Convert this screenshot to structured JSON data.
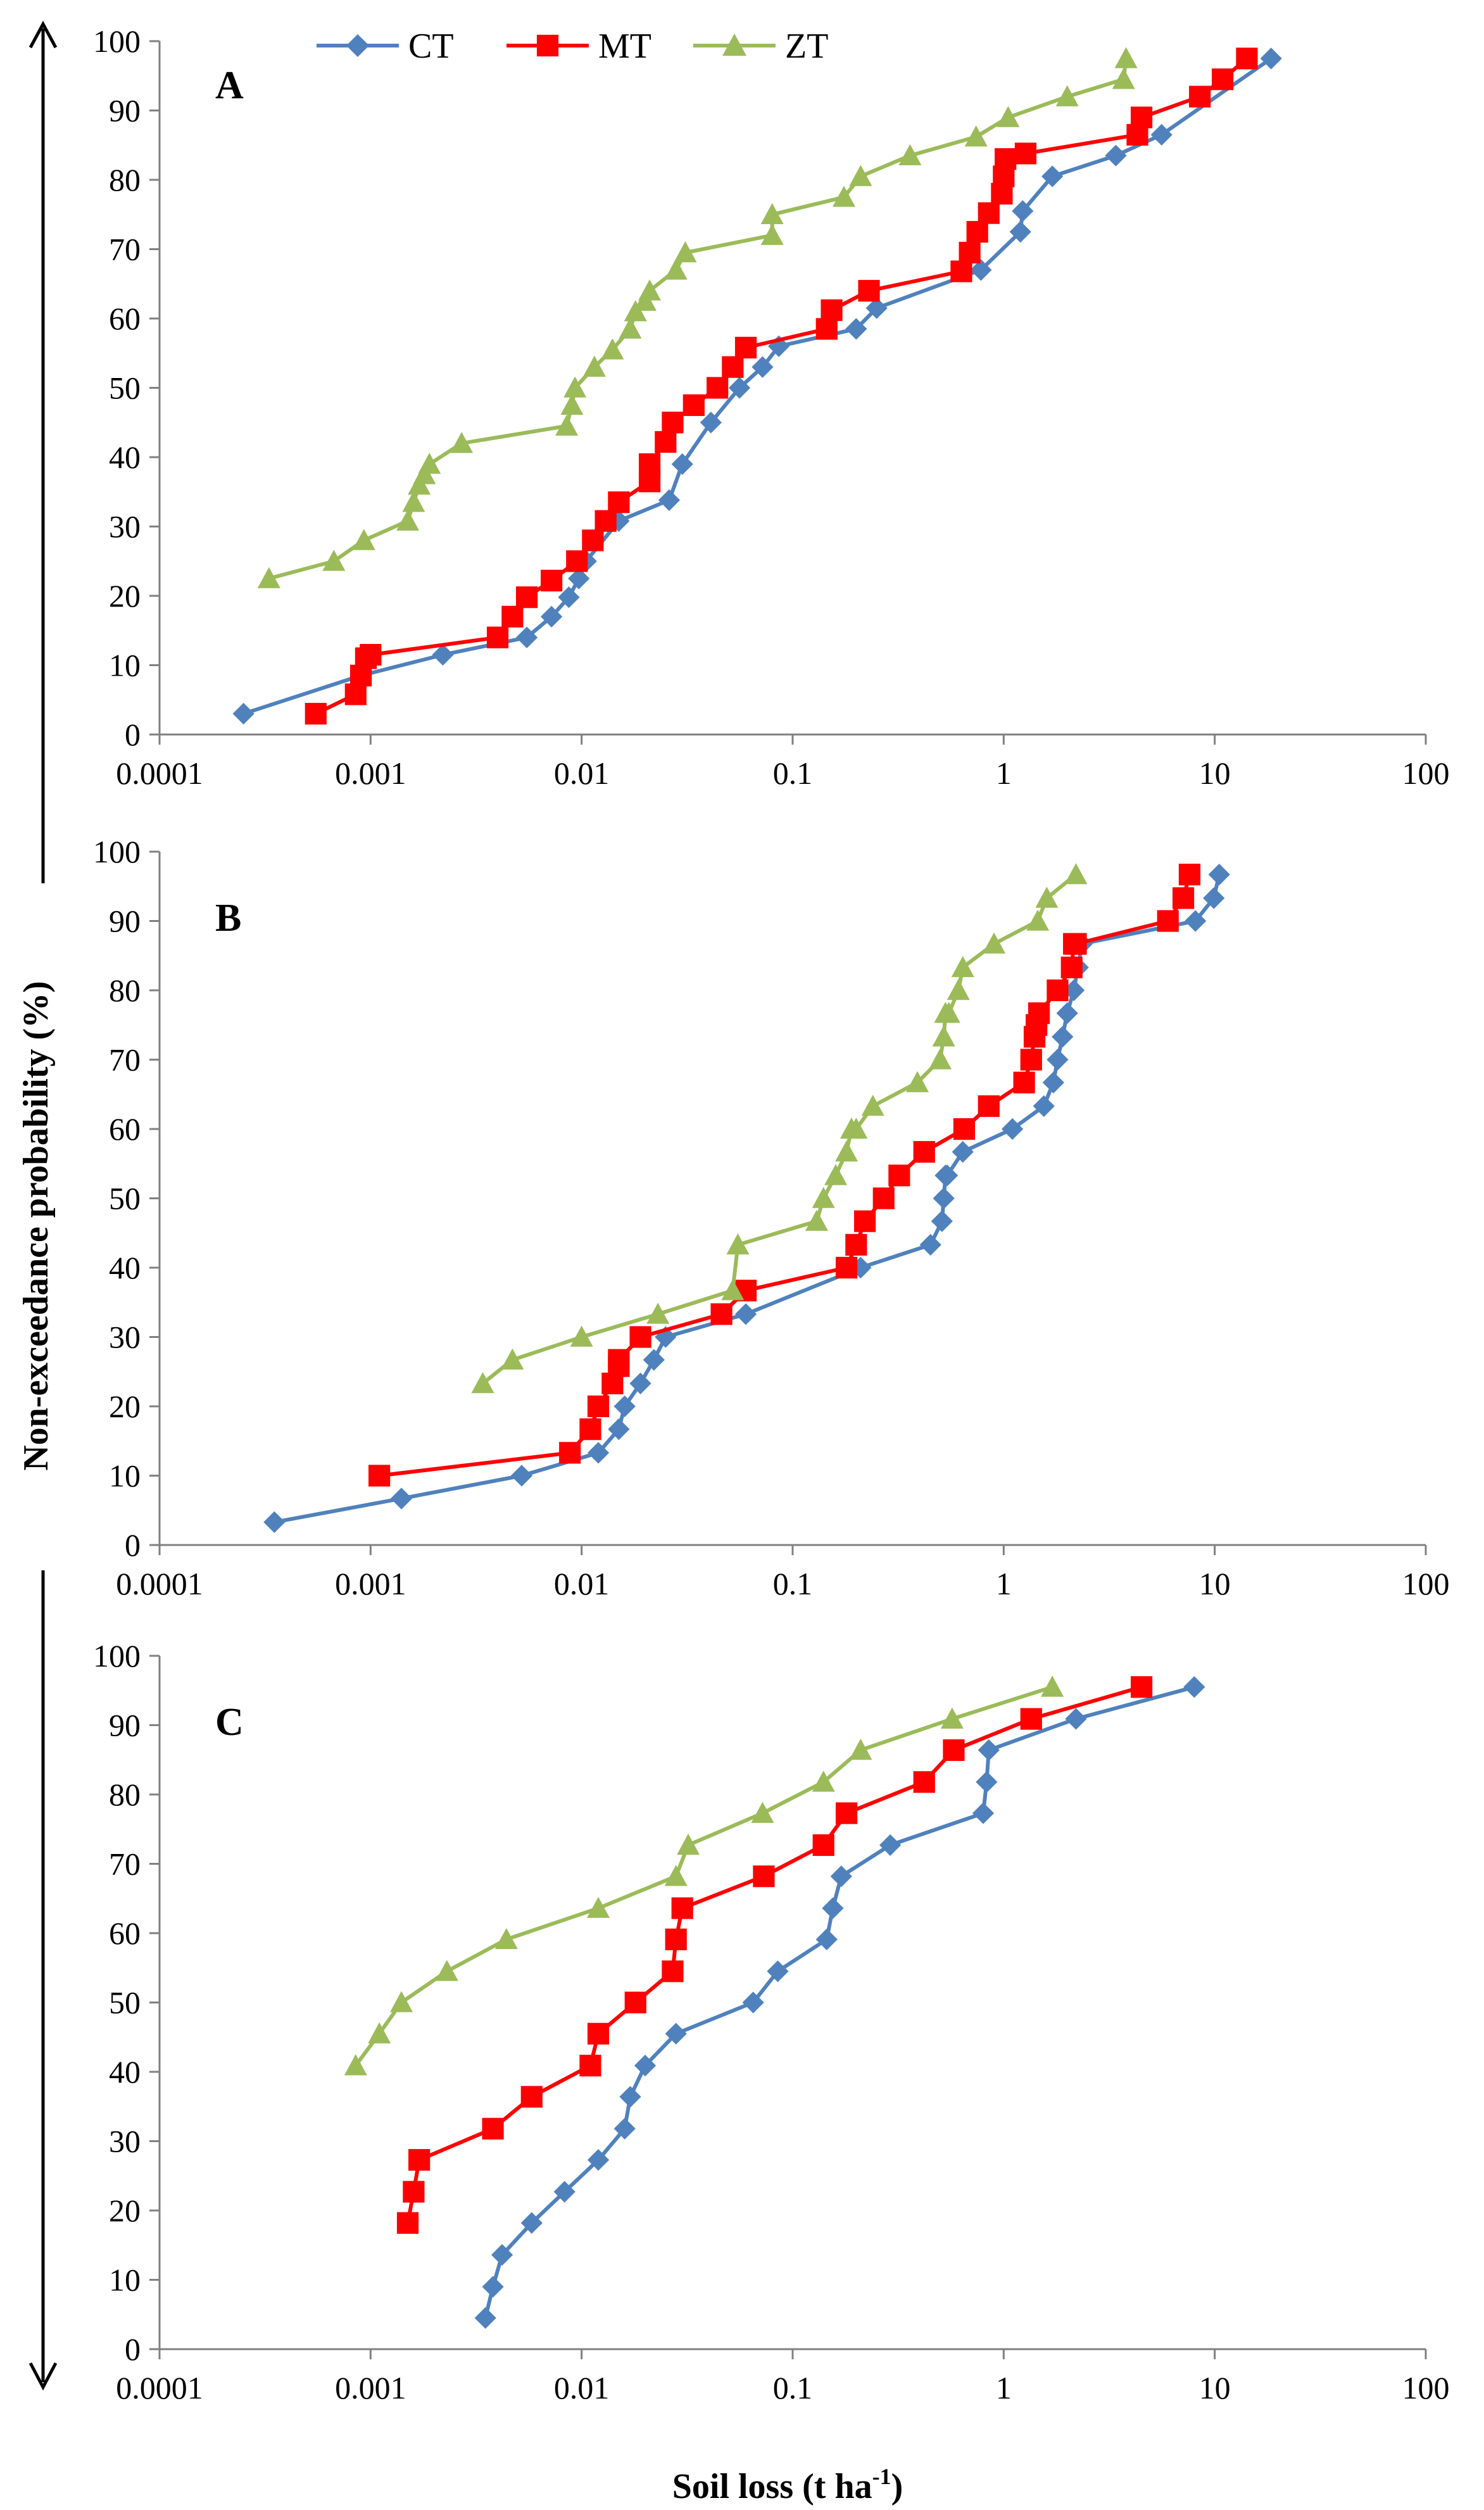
{
  "figure": {
    "ylabel": "Non-exceedance probability (%)",
    "xlabel_main": "Soil loss (t ha",
    "xlabel_sup": "-1",
    "xlabel_close": ")",
    "legend": [
      {
        "name": "CT",
        "color": "#4F81BD",
        "marker": "diamond"
      },
      {
        "name": "MT",
        "color": "#FF0000",
        "marker": "square"
      },
      {
        "name": "ZT",
        "color": "#9BBB59",
        "marker": "triangle"
      }
    ]
  },
  "chart_data": [
    {
      "type": "line",
      "panel": "A",
      "xscale": "log",
      "xlim": [
        0.0001,
        100
      ],
      "ylim": [
        0,
        100
      ],
      "xticks": [
        "0.0001",
        "0.001",
        "0.01",
        "0.1",
        "1",
        "10",
        "100"
      ],
      "yticks": [
        "0",
        "10",
        "20",
        "30",
        "40",
        "50",
        "60",
        "70",
        "80",
        "90",
        "100"
      ],
      "series": [
        {
          "name": "CT",
          "x": [
            0.00025,
            0.0009,
            0.0022,
            0.0055,
            0.0072,
            0.0087,
            0.0097,
            0.0105,
            0.015,
            0.026,
            0.03,
            0.041,
            0.056,
            0.072,
            0.086,
            0.2,
            0.25,
            0.78,
            1.2,
            1.23,
            1.7,
            3.4,
            5.6,
            18.5
          ],
          "y": [
            3,
            8.5,
            11.5,
            14,
            17,
            19.8,
            22.5,
            25,
            30.8,
            33.8,
            39,
            45,
            50,
            53,
            56,
            58.5,
            61.5,
            67,
            72.5,
            75.5,
            80.5,
            83.5,
            86.5,
            97.5
          ]
        },
        {
          "name": "MT",
          "x": [
            0.00055,
            0.00085,
            0.0009,
            0.00095,
            0.001,
            0.004,
            0.0047,
            0.0055,
            0.0072,
            0.0095,
            0.0113,
            0.013,
            0.015,
            0.021,
            0.021,
            0.025,
            0.027,
            0.034,
            0.044,
            0.052,
            0.06,
            0.145,
            0.153,
            0.23,
            0.63,
            0.69,
            0.75,
            0.85,
            0.98,
            1.0,
            1.02,
            1.27,
            4.3,
            4.5,
            8.5,
            10.9,
            14.2
          ],
          "y": [
            3,
            5.8,
            8.5,
            11,
            11.5,
            14,
            17,
            19.8,
            22.2,
            25,
            28,
            30.8,
            33.5,
            36.5,
            39,
            42.2,
            45,
            47.5,
            50,
            53,
            55.8,
            58.5,
            61.2,
            64,
            66.8,
            69.5,
            72.5,
            75.2,
            78,
            80.5,
            83,
            83.8,
            86.5,
            89,
            92,
            94.5,
            97.5
          ]
        },
        {
          "name": "ZT",
          "x": [
            0.00033,
            0.00067,
            0.00093,
            0.0015,
            0.0016,
            0.0017,
            0.0018,
            0.0019,
            0.0027,
            0.0085,
            0.009,
            0.0093,
            0.0115,
            0.014,
            0.017,
            0.018,
            0.02,
            0.021,
            0.028,
            0.031,
            0.08,
            0.08,
            0.175,
            0.21,
            0.36,
            0.74,
            1.05,
            2.0,
            3.7,
            3.8
          ],
          "y": [
            22.5,
            25,
            28,
            30.8,
            33.5,
            36,
            37.5,
            39,
            42,
            44.5,
            47.5,
            50,
            53,
            55.5,
            58.5,
            61,
            62.5,
            64,
            67,
            69.5,
            72,
            75,
            77.5,
            80.5,
            83.5,
            86.2,
            89,
            92,
            94.5,
            97.5
          ]
        }
      ]
    },
    {
      "type": "line",
      "panel": "B",
      "xscale": "log",
      "xlim": [
        0.0001,
        100
      ],
      "ylim": [
        0,
        100
      ],
      "xticks": [
        "0.0001",
        "0.001",
        "0.01",
        "0.1",
        "1",
        "10",
        "100"
      ],
      "yticks": [
        "0",
        "10",
        "20",
        "30",
        "40",
        "50",
        "60",
        "70",
        "80",
        "90",
        "100"
      ],
      "series": [
        {
          "name": "CT",
          "x": [
            0.00035,
            0.0014,
            0.0052,
            0.012,
            0.015,
            0.016,
            0.019,
            0.022,
            0.025,
            0.06,
            0.21,
            0.45,
            0.51,
            0.52,
            0.53,
            0.54,
            0.64,
            1.1,
            1.55,
            1.72,
            1.8,
            1.9,
            2.0,
            2.15,
            2.25,
            2.35,
            8.1,
            9.9,
            10.5
          ],
          "y": [
            3.3,
            6.7,
            10,
            13.3,
            16.7,
            20,
            23.3,
            26.7,
            30,
            33.3,
            40,
            43.3,
            46.7,
            50,
            53.3,
            53.3,
            56.7,
            60,
            63.3,
            66.7,
            70,
            73.3,
            76.7,
            80,
            83.3,
            86.7,
            90,
            93.3,
            96.7
          ]
        },
        {
          "name": "MT",
          "x": [
            0.0011,
            0.0088,
            0.011,
            0.012,
            0.014,
            0.015,
            0.015,
            0.019,
            0.046,
            0.06,
            0.18,
            0.2,
            0.22,
            0.27,
            0.32,
            0.42,
            0.65,
            0.85,
            1.25,
            1.35,
            1.4,
            1.43,
            1.47,
            1.8,
            2.1,
            2.15,
            2.2,
            6.0,
            7.1,
            7.6
          ],
          "y": [
            10,
            13.3,
            16.7,
            20,
            23.3,
            25.8,
            26.7,
            30,
            33.3,
            36.7,
            40,
            43.3,
            46.7,
            50,
            53.3,
            56.7,
            60,
            63.3,
            66.7,
            70,
            73.3,
            75,
            76.7,
            80,
            83.3,
            86.7,
            86.7,
            90,
            93.3,
            96.7
          ]
        },
        {
          "name": "ZT",
          "x": [
            0.0034,
            0.0047,
            0.01,
            0.023,
            0.052,
            0.055,
            0.13,
            0.14,
            0.16,
            0.18,
            0.19,
            0.2,
            0.24,
            0.39,
            0.5,
            0.52,
            0.53,
            0.55,
            0.61,
            0.64,
            0.9,
            1.45,
            1.6,
            2.2
          ],
          "y": [
            23.3,
            26.7,
            30,
            33.3,
            36.7,
            43.3,
            46.7,
            50,
            53.3,
            56.7,
            60,
            60,
            63.3,
            66.7,
            70,
            73.3,
            76.7,
            76.7,
            80,
            83.3,
            86.7,
            90,
            93.3,
            96.7
          ]
        }
      ]
    },
    {
      "type": "line",
      "panel": "C",
      "xscale": "log",
      "xlim": [
        0.0001,
        100
      ],
      "ylim": [
        0,
        100
      ],
      "xticks": [
        "0.0001",
        "0.001",
        "0.01",
        "0.1",
        "1",
        "10",
        "100"
      ],
      "yticks": [
        "0",
        "10",
        "20",
        "30",
        "40",
        "50",
        "60",
        "70",
        "80",
        "90",
        "100"
      ],
      "series": [
        {
          "name": "CT",
          "x": [
            0.0035,
            0.0038,
            0.0042,
            0.0058,
            0.0083,
            0.012,
            0.016,
            0.017,
            0.02,
            0.028,
            0.065,
            0.085,
            0.145,
            0.155,
            0.17,
            0.29,
            0.8,
            0.83,
            0.85,
            2.2,
            8.0
          ],
          "y": [
            4.5,
            9,
            13.6,
            18.2,
            22.7,
            27.3,
            31.8,
            36.4,
            40.9,
            45.5,
            50,
            54.5,
            59.1,
            63.6,
            68.2,
            72.7,
            77.3,
            81.8,
            86.4,
            90.9,
            95.5
          ]
        },
        {
          "name": "MT",
          "x": [
            0.0015,
            0.0016,
            0.0017,
            0.0038,
            0.0058,
            0.011,
            0.012,
            0.018,
            0.027,
            0.028,
            0.03,
            0.073,
            0.14,
            0.18,
            0.42,
            0.58,
            1.35,
            4.5
          ],
          "y": [
            18.2,
            22.7,
            27.3,
            31.8,
            36.4,
            40.9,
            45.5,
            50,
            54.5,
            59.1,
            63.6,
            68.2,
            72.7,
            77.3,
            81.8,
            86.4,
            90.9,
            95.5
          ]
        },
        {
          "name": "ZT",
          "x": [
            0.00085,
            0.0011,
            0.0014,
            0.0023,
            0.0044,
            0.012,
            0.028,
            0.032,
            0.072,
            0.14,
            0.21,
            0.57,
            1.7
          ],
          "y": [
            40.9,
            45.5,
            50,
            54.5,
            59.1,
            63.6,
            68.2,
            72.7,
            77.3,
            81.8,
            86.4,
            90.9,
            95.5
          ]
        }
      ]
    }
  ]
}
